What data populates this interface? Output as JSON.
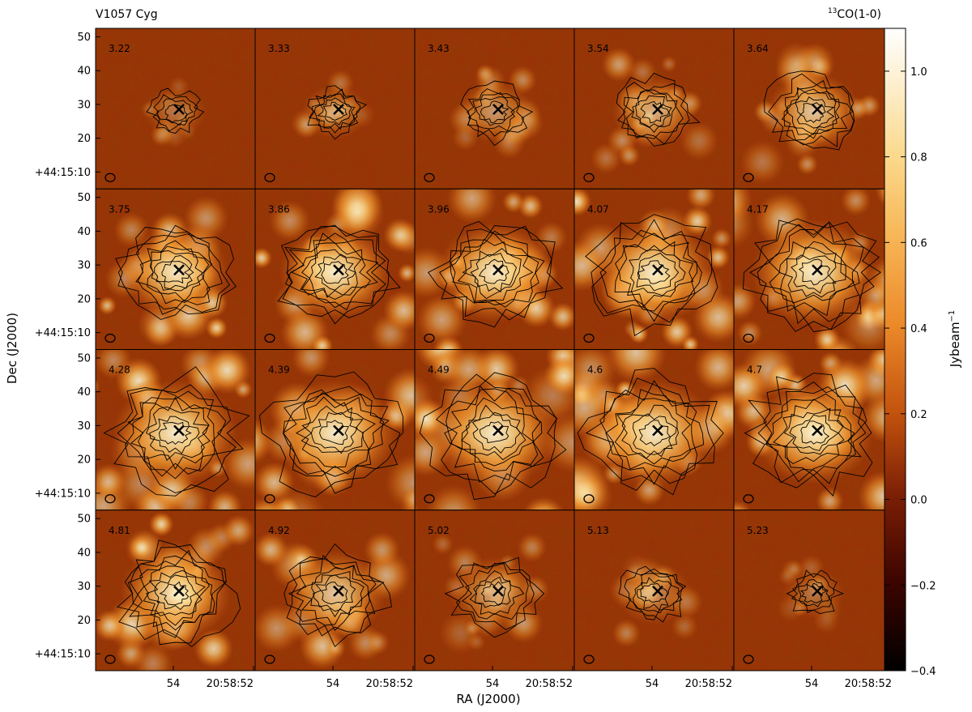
{
  "header": {
    "source": "V1057 Cyg",
    "line": "CO(1-0)",
    "line_sup": "13"
  },
  "chart_data": {
    "type": "heatmap",
    "description_kind": "channel-map grid with contour overlay and colorbar",
    "rows": 4,
    "cols": 5,
    "channels": [
      "3.22",
      "3.33",
      "3.43",
      "3.54",
      "3.64",
      "3.75",
      "3.86",
      "3.96",
      "4.07",
      "4.17",
      "4.28",
      "4.39",
      "4.49",
      "4.6",
      "4.7",
      "4.81",
      "4.92",
      "5.02",
      "5.13",
      "5.23"
    ],
    "channel_peak_intensity": [
      0.35,
      0.45,
      0.55,
      0.65,
      0.8,
      0.95,
      1.0,
      1.0,
      1.0,
      1.0,
      1.0,
      1.0,
      1.0,
      1.0,
      1.0,
      0.95,
      0.8,
      0.6,
      0.45,
      0.35
    ],
    "channel_extent": [
      0.3,
      0.35,
      0.45,
      0.55,
      0.65,
      0.8,
      0.85,
      0.9,
      0.95,
      1.0,
      1.0,
      1.0,
      1.0,
      1.0,
      0.95,
      0.85,
      0.75,
      0.6,
      0.45,
      0.3
    ],
    "xlabel": "RA (J2000)",
    "ylabel": "Dec (J2000)",
    "x_ticks": [
      "54",
      "20:58:52"
    ],
    "y_ticks": [
      "50",
      "40",
      "30",
      "20",
      "+44:15:10"
    ],
    "y_tick_values": [
      50,
      40,
      30,
      20,
      10
    ],
    "ylim": [
      5,
      52.5
    ],
    "colorbar": {
      "label": "Jybeam",
      "label_sup": "−1",
      "range": [
        -0.4,
        1.1
      ],
      "ticks": [
        -0.4,
        -0.2,
        0.0,
        0.2,
        0.4,
        0.6,
        0.8,
        1.0
      ],
      "tick_labels": [
        "−0.4",
        "−0.2",
        "0.0",
        "0.2",
        "0.4",
        "0.6",
        "0.8",
        "1.0"
      ],
      "colormap": "afmhot"
    },
    "markers": {
      "source_position_symbol": "cross",
      "beam_symbol": "ellipse"
    },
    "colors": {
      "background_low": "#7a1e05",
      "background_mid": "#c2520d",
      "emission_high": "#ffffe0",
      "contour": "#000000"
    }
  }
}
